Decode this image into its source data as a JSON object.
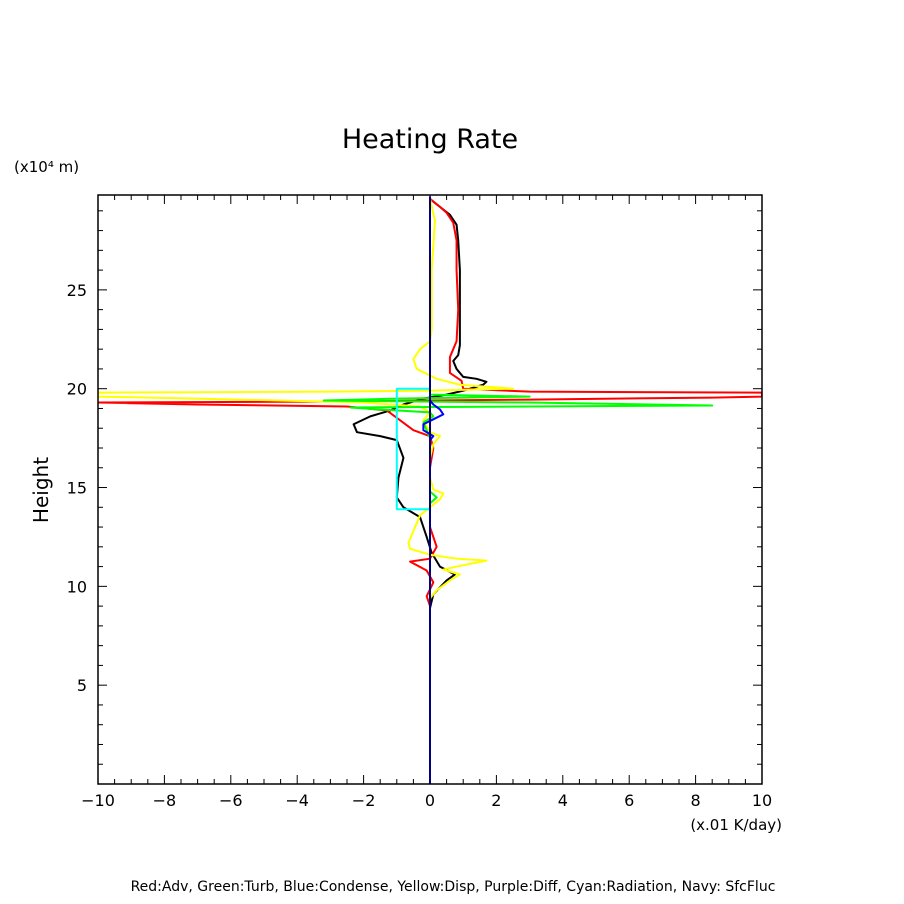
{
  "chart_data": {
    "type": "line",
    "title": "Heating Rate",
    "xlabel": "(x.01 K/day)",
    "ylabel": "Height",
    "y_unit_label": "(x10⁴ m)",
    "xlim": [
      -10,
      10
    ],
    "ylim": [
      0,
      29.8
    ],
    "x_ticks": [
      -10,
      -8,
      -6,
      -4,
      -2,
      0,
      2,
      4,
      6,
      8,
      10
    ],
    "x_tick_labels": [
      "−10",
      "−8",
      "−6",
      "−4",
      "−2",
      "0",
      "2",
      "4",
      "6",
      "8",
      "10"
    ],
    "y_ticks": [
      5,
      10,
      15,
      20,
      25
    ],
    "y_tick_labels": [
      "5",
      "10",
      "15",
      "20",
      "25"
    ],
    "grid": false,
    "legend_text": "Red:Adv, Green:Turb, Blue:Condense, Yellow:Disp, Purple:Diff, Cyan:Radiation, Navy: SfcFluc",
    "series": [
      {
        "color": "#000000",
        "points": [
          [
            0.0,
            0.2
          ],
          [
            0.0,
            8.9
          ],
          [
            0.1,
            9.6
          ],
          [
            0.5,
            10.3
          ],
          [
            0.75,
            10.6
          ],
          [
            0.3,
            11.0
          ],
          [
            0.05,
            11.7
          ],
          [
            -0.1,
            12.5
          ],
          [
            -0.3,
            13.5
          ],
          [
            -0.8,
            14.0
          ],
          [
            -1.0,
            14.5
          ],
          [
            -0.95,
            15.5
          ],
          [
            -0.8,
            16.5
          ],
          [
            -1.0,
            17.4
          ],
          [
            -1.5,
            17.6
          ],
          [
            -2.2,
            17.8
          ],
          [
            -2.3,
            18.2
          ],
          [
            -1.8,
            18.6
          ],
          [
            -1.2,
            18.9
          ],
          [
            -0.8,
            19.2
          ],
          [
            -0.2,
            19.5
          ],
          [
            0.5,
            19.7
          ],
          [
            1.0,
            19.9
          ],
          [
            1.6,
            20.2
          ],
          [
            1.7,
            20.35
          ],
          [
            1.4,
            20.5
          ],
          [
            1.0,
            20.6
          ],
          [
            0.8,
            21.0
          ],
          [
            0.7,
            21.4
          ],
          [
            0.85,
            21.7
          ],
          [
            0.9,
            22.2
          ],
          [
            0.9,
            24.0
          ],
          [
            0.9,
            26.0
          ],
          [
            0.85,
            27.5
          ],
          [
            0.8,
            28.3
          ],
          [
            0.6,
            28.8
          ],
          [
            0.3,
            29.2
          ],
          [
            0.0,
            29.6
          ]
        ]
      },
      {
        "color": "#ff0000",
        "points": [
          [
            0.0,
            0.2
          ],
          [
            0.0,
            9.0
          ],
          [
            -0.1,
            9.5
          ],
          [
            0.1,
            10.2
          ],
          [
            -0.1,
            10.8
          ],
          [
            -0.6,
            11.25
          ],
          [
            0.0,
            11.4
          ],
          [
            0.2,
            12.0
          ],
          [
            0.0,
            13.0
          ],
          [
            0.0,
            16.0
          ],
          [
            0.1,
            17.0
          ],
          [
            0.0,
            17.6
          ],
          [
            -0.5,
            17.9
          ],
          [
            -0.9,
            18.4
          ],
          [
            -1.3,
            18.9
          ],
          [
            -2.5,
            19.1
          ],
          [
            -7.0,
            19.2
          ],
          [
            -10.0,
            19.3
          ],
          [
            -3.0,
            19.35
          ],
          [
            3.0,
            19.45
          ],
          [
            8.5,
            19.55
          ],
          [
            10.0,
            19.6
          ],
          [
            10.0,
            19.8
          ],
          [
            3.0,
            19.85
          ],
          [
            1.0,
            20.0
          ],
          [
            0.95,
            20.4
          ],
          [
            0.6,
            20.8
          ],
          [
            0.6,
            21.6
          ],
          [
            0.8,
            22.4
          ],
          [
            0.85,
            24.0
          ],
          [
            0.8,
            26.0
          ],
          [
            0.8,
            27.5
          ],
          [
            0.7,
            28.4
          ],
          [
            0.5,
            28.9
          ],
          [
            0.3,
            29.2
          ],
          [
            0.0,
            29.6
          ]
        ]
      },
      {
        "color": "#ffff00",
        "points": [
          [
            0.0,
            0.2
          ],
          [
            0.0,
            9.0
          ],
          [
            0.0,
            9.4
          ],
          [
            0.2,
            9.8
          ],
          [
            0.6,
            10.3
          ],
          [
            0.9,
            10.6
          ],
          [
            0.4,
            10.85
          ],
          [
            0.8,
            11.0
          ],
          [
            1.7,
            11.3
          ],
          [
            0.8,
            11.4
          ],
          [
            0.0,
            11.6
          ],
          [
            -0.6,
            11.9
          ],
          [
            -0.65,
            12.2
          ],
          [
            -0.5,
            12.8
          ],
          [
            -0.3,
            13.6
          ],
          [
            0.0,
            14.0
          ],
          [
            0.3,
            14.4
          ],
          [
            0.4,
            14.7
          ],
          [
            0.1,
            14.9
          ],
          [
            0.0,
            15.5
          ],
          [
            0.0,
            16.5
          ],
          [
            0.1,
            17.2
          ],
          [
            0.3,
            17.6
          ],
          [
            0.0,
            17.8
          ],
          [
            -0.2,
            18.4
          ],
          [
            0.0,
            18.8
          ],
          [
            -0.3,
            19.1
          ],
          [
            -2.0,
            19.3
          ],
          [
            -7.0,
            19.5
          ],
          [
            -10.0,
            19.6
          ],
          [
            -10.0,
            19.8
          ],
          [
            -3.0,
            19.85
          ],
          [
            0.0,
            19.9
          ],
          [
            2.5,
            20.0
          ],
          [
            0.9,
            20.2
          ],
          [
            0.2,
            20.5
          ],
          [
            -0.4,
            21.0
          ],
          [
            -0.5,
            21.5
          ],
          [
            -0.3,
            22.0
          ],
          [
            0.0,
            22.4
          ],
          [
            0.05,
            23.0
          ],
          [
            0.05,
            26.0
          ],
          [
            0.15,
            28.5
          ],
          [
            0.0,
            29.6
          ]
        ]
      },
      {
        "color": "#00ff00",
        "points": [
          [
            0.0,
            0.2
          ],
          [
            0.0,
            14.2
          ],
          [
            0.2,
            14.5
          ],
          [
            0.0,
            14.8
          ],
          [
            0.0,
            17.5
          ],
          [
            -0.2,
            18.3
          ],
          [
            0.1,
            18.6
          ],
          [
            0.0,
            18.8
          ],
          [
            -1.5,
            18.95
          ],
          [
            -2.4,
            19.05
          ],
          [
            3.0,
            19.1
          ],
          [
            8.5,
            19.15
          ],
          [
            3.0,
            19.3
          ],
          [
            -3.2,
            19.4
          ],
          [
            -1.0,
            19.5
          ],
          [
            1.0,
            19.55
          ],
          [
            3.0,
            19.6
          ],
          [
            0.0,
            19.7
          ],
          [
            0.0,
            29.6
          ]
        ]
      },
      {
        "color": "#0000ff",
        "points": [
          [
            0.0,
            0.2
          ],
          [
            0.0,
            17.4
          ],
          [
            0.1,
            17.6
          ],
          [
            -0.2,
            17.9
          ],
          [
            -0.2,
            18.2
          ],
          [
            0.1,
            18.45
          ],
          [
            0.4,
            18.7
          ],
          [
            0.3,
            18.95
          ],
          [
            0.1,
            19.2
          ],
          [
            0.0,
            19.4
          ],
          [
            0.0,
            29.6
          ]
        ]
      },
      {
        "color": "#00ffff",
        "points": [
          [
            0.0,
            13.9
          ],
          [
            -1.0,
            13.9
          ],
          [
            -1.0,
            20.0
          ],
          [
            0.0,
            20.0
          ]
        ]
      },
      {
        "color": "#000080",
        "points": [
          [
            0.0,
            0.0
          ],
          [
            0.0,
            29.7
          ]
        ]
      }
    ]
  }
}
